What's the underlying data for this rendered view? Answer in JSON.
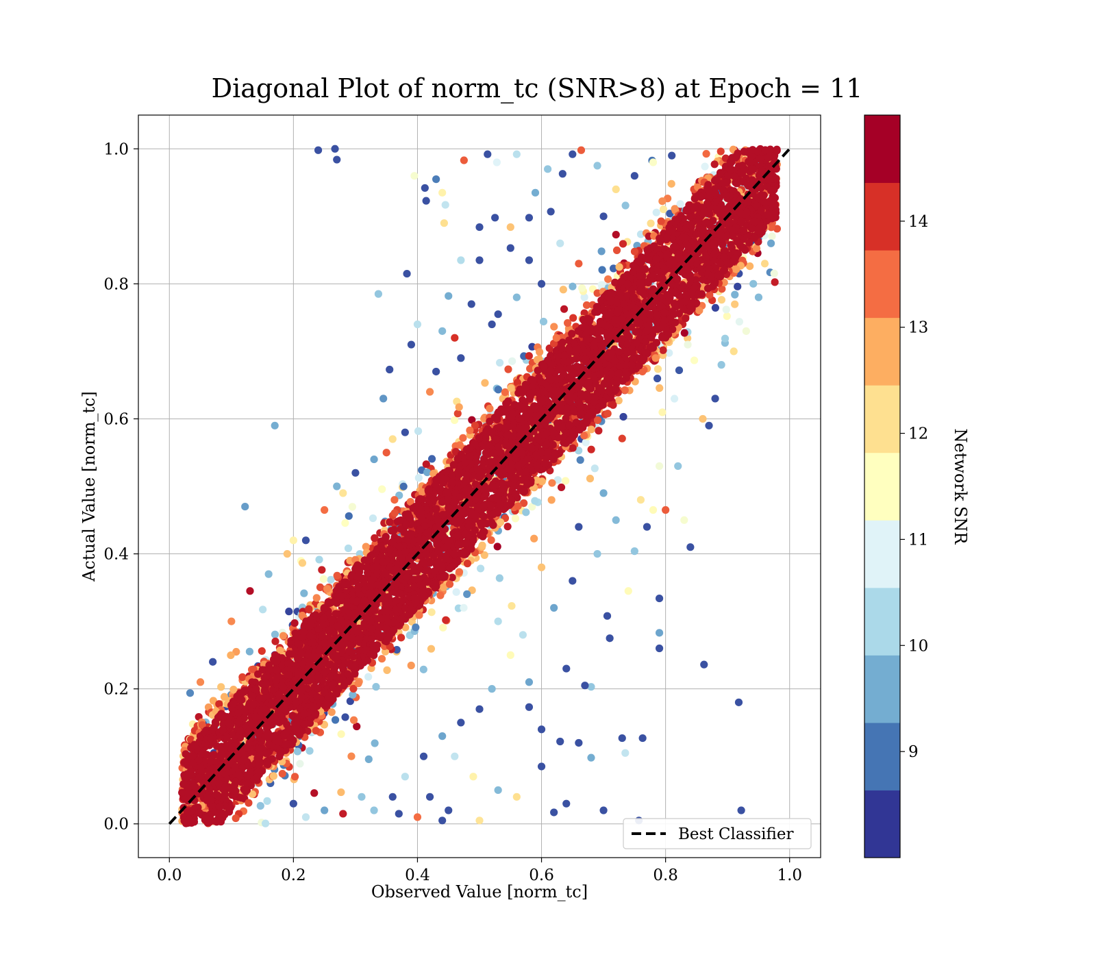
{
  "chart_data": {
    "type": "scatter",
    "title": "Diagonal Plot of norm_tc (SNR>8) at Epoch = 11",
    "xlabel": "Observed Value [norm_tc]",
    "ylabel": "Actual Value [norm_tc]",
    "xlim": [
      -0.05,
      1.05
    ],
    "ylim": [
      -0.05,
      1.05
    ],
    "xticks": [
      0.0,
      0.2,
      0.4,
      0.6,
      0.8,
      1.0
    ],
    "yticks": [
      0.0,
      0.2,
      0.4,
      0.6,
      0.8,
      1.0
    ],
    "xtick_labels": [
      "0.0",
      "0.2",
      "0.4",
      "0.6",
      "0.8",
      "1.0"
    ],
    "ytick_labels": [
      "0.0",
      "0.2",
      "0.4",
      "0.6",
      "0.8",
      "1.0"
    ],
    "grid": true,
    "reference_line": {
      "name": "Best Classifier",
      "x": [
        0.0,
        1.0
      ],
      "y": [
        0.0,
        1.0
      ],
      "style": "dashed",
      "color": "#000000"
    },
    "legend": {
      "placement": "bottom-right",
      "entries": [
        "Best Classifier"
      ]
    },
    "colorbar": {
      "label": "Network SNR",
      "range": [
        8,
        15
      ],
      "ticks": [
        9,
        10,
        11,
        12,
        13,
        14
      ],
      "tick_labels": [
        "9",
        "10",
        "11",
        "12",
        "13",
        "14"
      ],
      "colors": [
        "#313695",
        "#4575b4",
        "#74add1",
        "#abd9e9",
        "#e0f3f8",
        "#ffffbf",
        "#fee090",
        "#fdae61",
        "#f46d43",
        "#d73027",
        "#a50026"
      ]
    },
    "points_outliers": [
      {
        "x": 0.24,
        "y": 0.998,
        "snr": 8.3
      },
      {
        "x": 0.267,
        "y": 1.0,
        "snr": 8.3
      },
      {
        "x": 0.27,
        "y": 0.984,
        "snr": 8.3
      },
      {
        "x": 0.17,
        "y": 0.59,
        "snr": 9.4
      },
      {
        "x": 0.122,
        "y": 0.47,
        "snr": 9.2
      },
      {
        "x": 0.337,
        "y": 0.785,
        "snr": 9.8
      },
      {
        "x": 0.383,
        "y": 0.815,
        "snr": 8.3
      },
      {
        "x": 0.39,
        "y": 0.71,
        "snr": 8.3
      },
      {
        "x": 0.355,
        "y": 0.673,
        "snr": 8.3
      },
      {
        "x": 0.345,
        "y": 0.63,
        "snr": 9.1
      },
      {
        "x": 0.395,
        "y": 0.96,
        "snr": 11.3
      },
      {
        "x": 0.412,
        "y": 0.942,
        "snr": 8.3
      },
      {
        "x": 0.414,
        "y": 0.923,
        "snr": 8.3
      },
      {
        "x": 0.43,
        "y": 0.955,
        "snr": 8.8
      },
      {
        "x": 0.44,
        "y": 0.935,
        "snr": 11.8
      },
      {
        "x": 0.443,
        "y": 0.89,
        "snr": 12.2
      },
      {
        "x": 0.445,
        "y": 0.917,
        "snr": 10.4
      },
      {
        "x": 0.475,
        "y": 0.983,
        "snr": 13.8
      },
      {
        "x": 0.513,
        "y": 0.992,
        "snr": 8.3
      },
      {
        "x": 0.528,
        "y": 0.98,
        "snr": 10.8
      },
      {
        "x": 0.56,
        "y": 0.992,
        "snr": 10.3
      },
      {
        "x": 0.59,
        "y": 0.935,
        "snr": 9.4
      },
      {
        "x": 0.61,
        "y": 0.97,
        "snr": 9.8
      },
      {
        "x": 0.634,
        "y": 0.963,
        "snr": 8.3
      },
      {
        "x": 0.65,
        "y": 0.992,
        "snr": 8.3
      },
      {
        "x": 0.664,
        "y": 0.998,
        "snr": 13.8
      },
      {
        "x": 0.69,
        "y": 0.975,
        "snr": 9.8
      },
      {
        "x": 0.5,
        "y": 0.884,
        "snr": 8.3
      },
      {
        "x": 0.525,
        "y": 0.898,
        "snr": 8.3
      },
      {
        "x": 0.55,
        "y": 0.884,
        "snr": 12.6
      },
      {
        "x": 0.58,
        "y": 0.898,
        "snr": 8.3
      },
      {
        "x": 0.615,
        "y": 0.907,
        "snr": 8.3
      },
      {
        "x": 0.45,
        "y": 0.782,
        "snr": 9.4
      },
      {
        "x": 0.487,
        "y": 0.77,
        "snr": 8.3
      },
      {
        "x": 0.5,
        "y": 0.835,
        "snr": 8.3
      },
      {
        "x": 0.53,
        "y": 0.755,
        "snr": 8.3
      },
      {
        "x": 0.55,
        "y": 0.853,
        "snr": 8.3
      },
      {
        "x": 0.58,
        "y": 0.835,
        "snr": 8.3
      },
      {
        "x": 0.47,
        "y": 0.835,
        "snr": 10.2
      },
      {
        "x": 0.4,
        "y": 0.74,
        "snr": 10.3
      },
      {
        "x": 0.46,
        "y": 0.72,
        "snr": 14.3
      },
      {
        "x": 0.44,
        "y": 0.73,
        "snr": 9.6
      },
      {
        "x": 0.43,
        "y": 0.67,
        "snr": 8.3
      },
      {
        "x": 0.38,
        "y": 0.58,
        "snr": 8.3
      },
      {
        "x": 0.35,
        "y": 0.55,
        "snr": 13.8
      },
      {
        "x": 0.3,
        "y": 0.52,
        "snr": 8.3
      },
      {
        "x": 0.27,
        "y": 0.5,
        "snr": 9.5
      },
      {
        "x": 0.22,
        "y": 0.42,
        "snr": 8.3
      },
      {
        "x": 0.19,
        "y": 0.4,
        "snr": 12.6
      },
      {
        "x": 0.16,
        "y": 0.37,
        "snr": 9.6
      },
      {
        "x": 0.13,
        "y": 0.345,
        "snr": 14.8
      },
      {
        "x": 0.1,
        "y": 0.3,
        "snr": 13.3
      },
      {
        "x": 0.07,
        "y": 0.24,
        "snr": 8.3
      },
      {
        "x": 0.05,
        "y": 0.21,
        "snr": 13.3
      },
      {
        "x": 0.2,
        "y": 0.42,
        "snr": 11.8
      },
      {
        "x": 0.25,
        "y": 0.465,
        "snr": 13.6
      },
      {
        "x": 0.28,
        "y": 0.49,
        "snr": 12.1
      },
      {
        "x": 0.33,
        "y": 0.54,
        "snr": 9.3
      },
      {
        "x": 0.36,
        "y": 0.57,
        "snr": 12.2
      },
      {
        "x": 0.42,
        "y": 0.64,
        "snr": 13.3
      },
      {
        "x": 0.47,
        "y": 0.69,
        "snr": 8.3
      },
      {
        "x": 0.52,
        "y": 0.74,
        "snr": 8.3
      },
      {
        "x": 0.56,
        "y": 0.78,
        "snr": 9.6
      },
      {
        "x": 0.6,
        "y": 0.8,
        "snr": 8.3
      },
      {
        "x": 0.63,
        "y": 0.86,
        "snr": 10.4
      },
      {
        "x": 0.66,
        "y": 0.83,
        "snr": 13.8
      },
      {
        "x": 0.7,
        "y": 0.9,
        "snr": 8.3
      },
      {
        "x": 0.72,
        "y": 0.94,
        "snr": 12.2
      },
      {
        "x": 0.75,
        "y": 0.96,
        "snr": 8.3
      },
      {
        "x": 0.78,
        "y": 0.98,
        "snr": 11.4
      },
      {
        "x": 0.81,
        "y": 0.99,
        "snr": 8.3
      },
      {
        "x": 0.79,
        "y": 0.26,
        "snr": 8.3
      },
      {
        "x": 0.79,
        "y": 0.283,
        "snr": 9.3
      },
      {
        "x": 0.79,
        "y": 0.334,
        "snr": 8.3
      },
      {
        "x": 0.862,
        "y": 0.236,
        "snr": 8.3
      },
      {
        "x": 0.918,
        "y": 0.18,
        "snr": 8.3
      },
      {
        "x": 0.922,
        "y": 0.02,
        "snr": 8.3
      },
      {
        "x": 0.757,
        "y": 0.005,
        "snr": 8.3
      },
      {
        "x": 0.7,
        "y": 0.02,
        "snr": 8.3
      },
      {
        "x": 0.64,
        "y": 0.03,
        "snr": 8.3
      },
      {
        "x": 0.62,
        "y": 0.017,
        "snr": 8.3
      },
      {
        "x": 0.763,
        "y": 0.127,
        "snr": 8.3
      },
      {
        "x": 0.73,
        "y": 0.127,
        "snr": 8.3
      },
      {
        "x": 0.735,
        "y": 0.105,
        "snr": 10.4
      },
      {
        "x": 0.68,
        "y": 0.098,
        "snr": 9.4
      },
      {
        "x": 0.66,
        "y": 0.12,
        "snr": 8.3
      },
      {
        "x": 0.63,
        "y": 0.122,
        "snr": 8.3
      },
      {
        "x": 0.6,
        "y": 0.085,
        "snr": 8.3
      },
      {
        "x": 0.58,
        "y": 0.173,
        "snr": 8.3
      },
      {
        "x": 0.68,
        "y": 0.203,
        "snr": 9.8
      },
      {
        "x": 0.67,
        "y": 0.205,
        "snr": 8.3
      },
      {
        "x": 0.64,
        "y": 0.23,
        "snr": 8.3
      },
      {
        "x": 0.71,
        "y": 0.275,
        "snr": 8.3
      },
      {
        "x": 0.706,
        "y": 0.308,
        "snr": 8.3
      },
      {
        "x": 0.74,
        "y": 0.345,
        "snr": 11.6
      },
      {
        "x": 0.75,
        "y": 0.404,
        "snr": 9.8
      },
      {
        "x": 0.77,
        "y": 0.44,
        "snr": 8.3
      },
      {
        "x": 0.78,
        "y": 0.465,
        "snr": 11.6
      },
      {
        "x": 0.8,
        "y": 0.465,
        "snr": 13.8
      },
      {
        "x": 0.83,
        "y": 0.45,
        "snr": 11.3
      },
      {
        "x": 0.84,
        "y": 0.41,
        "snr": 8.3
      },
      {
        "x": 0.82,
        "y": 0.53,
        "snr": 9.8
      },
      {
        "x": 0.79,
        "y": 0.53,
        "snr": 11.2
      },
      {
        "x": 0.76,
        "y": 0.48,
        "snr": 12.1
      },
      {
        "x": 0.72,
        "y": 0.45,
        "snr": 9.6
      },
      {
        "x": 0.69,
        "y": 0.4,
        "snr": 9.8
      },
      {
        "x": 0.65,
        "y": 0.36,
        "snr": 8.3
      },
      {
        "x": 0.62,
        "y": 0.32,
        "snr": 9.3
      },
      {
        "x": 0.57,
        "y": 0.28,
        "snr": 10.3
      },
      {
        "x": 0.55,
        "y": 0.25,
        "snr": 11.6
      },
      {
        "x": 0.52,
        "y": 0.2,
        "snr": 9.6
      },
      {
        "x": 0.5,
        "y": 0.17,
        "snr": 8.3
      },
      {
        "x": 0.47,
        "y": 0.15,
        "snr": 8.3
      },
      {
        "x": 0.44,
        "y": 0.13,
        "snr": 9.3
      },
      {
        "x": 0.41,
        "y": 0.1,
        "snr": 8.3
      },
      {
        "x": 0.38,
        "y": 0.07,
        "snr": 10.3
      },
      {
        "x": 0.36,
        "y": 0.04,
        "snr": 8.3
      },
      {
        "x": 0.33,
        "y": 0.02,
        "snr": 9.8
      },
      {
        "x": 0.46,
        "y": 0.1,
        "snr": 10.4
      },
      {
        "x": 0.49,
        "y": 0.07,
        "snr": 11.8
      },
      {
        "x": 0.53,
        "y": 0.05,
        "snr": 9.6
      },
      {
        "x": 0.56,
        "y": 0.04,
        "snr": 12.2
      },
      {
        "x": 0.6,
        "y": 0.14,
        "snr": 8.3
      },
      {
        "x": 0.58,
        "y": 0.21,
        "snr": 9.3
      },
      {
        "x": 0.53,
        "y": 0.3,
        "snr": 10.2
      },
      {
        "x": 0.6,
        "y": 0.38,
        "snr": 12.6
      },
      {
        "x": 0.66,
        "y": 0.44,
        "snr": 8.3
      },
      {
        "x": 0.7,
        "y": 0.49,
        "snr": 9.4
      },
      {
        "x": 0.86,
        "y": 0.6,
        "snr": 12.6
      },
      {
        "x": 0.88,
        "y": 0.63,
        "snr": 8.3
      },
      {
        "x": 0.87,
        "y": 0.59,
        "snr": 8.3
      },
      {
        "x": 0.89,
        "y": 0.68,
        "snr": 9.8
      },
      {
        "x": 0.91,
        "y": 0.7,
        "snr": 12.2
      },
      {
        "x": 0.93,
        "y": 0.73,
        "snr": 11.2
      },
      {
        "x": 0.95,
        "y": 0.78,
        "snr": 9.6
      },
      {
        "x": 0.96,
        "y": 0.83,
        "snr": 12.3
      },
      {
        "x": 0.97,
        "y": 0.86,
        "snr": 9.3
      },
      {
        "x": 0.45,
        "y": 0.02,
        "snr": 8.3
      },
      {
        "x": 0.44,
        "y": 0.005,
        "snr": 8.3
      },
      {
        "x": 0.5,
        "y": 0.005,
        "snr": 12.1
      },
      {
        "x": 0.42,
        "y": 0.04,
        "snr": 8.3
      },
      {
        "x": 0.4,
        "y": 0.01,
        "snr": 13.6
      },
      {
        "x": 0.37,
        "y": 0.015,
        "snr": 8.3
      },
      {
        "x": 0.31,
        "y": 0.04,
        "snr": 9.8
      },
      {
        "x": 0.28,
        "y": 0.015,
        "snr": 14.6
      },
      {
        "x": 0.25,
        "y": 0.02,
        "snr": 9.3
      },
      {
        "x": 0.22,
        "y": 0.01,
        "snr": 10.4
      },
      {
        "x": 0.2,
        "y": 0.03,
        "snr": 8.3
      }
    ],
    "main_cloud": {
      "description_of_distribution": "dense band of high-SNR points along y = x",
      "x_range": [
        0.02,
        0.98
      ],
      "y_range": [
        0.0,
        1.0
      ],
      "dominant_snr": 14.8
    }
  }
}
